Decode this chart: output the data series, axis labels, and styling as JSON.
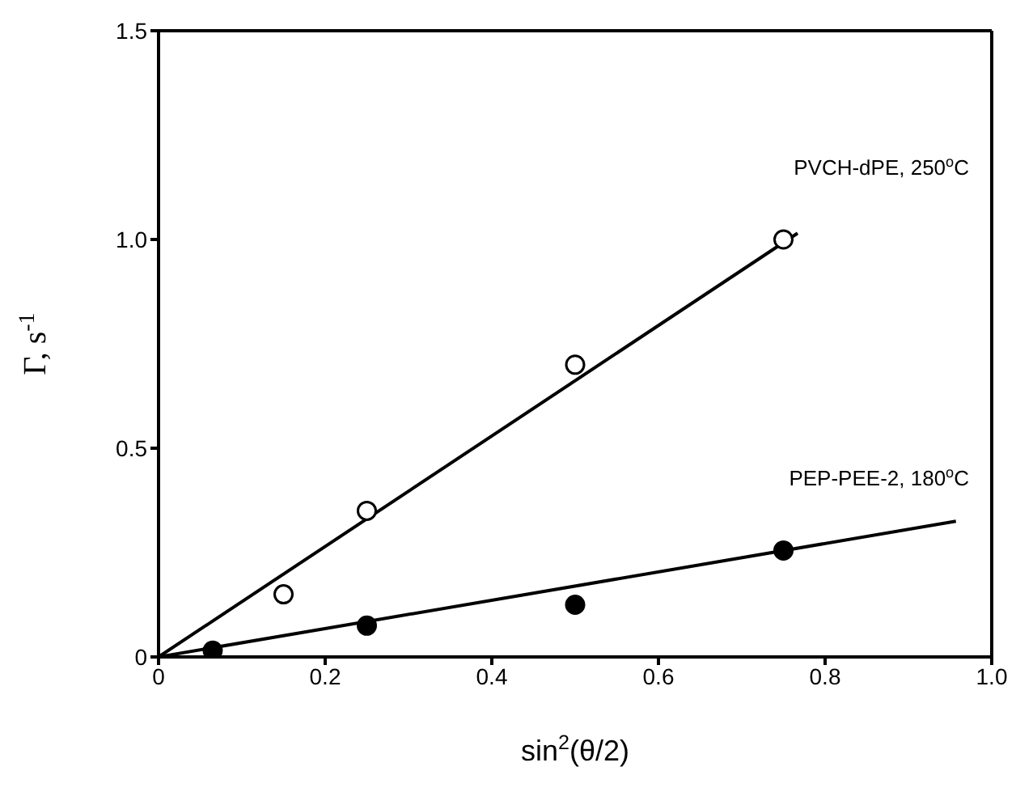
{
  "chart_data": {
    "type": "scatter",
    "xlabel": "sin$^{2}$(θ/2)",
    "ylabel": "Γ, s$^{-1}$",
    "xlim": [
      0,
      1.0
    ],
    "ylim": [
      0,
      1.5
    ],
    "xticks": [
      {
        "value": 0,
        "label": "0"
      },
      {
        "value": 0.2,
        "label": "0.2"
      },
      {
        "value": 0.4,
        "label": "0.4"
      },
      {
        "value": 0.6,
        "label": "0.6"
      },
      {
        "value": 0.8,
        "label": "0.8"
      },
      {
        "value": 1.0,
        "label": "1.0"
      }
    ],
    "yticks": [
      {
        "value": 0,
        "label": "0"
      },
      {
        "value": 0.5,
        "label": "0.5"
      },
      {
        "value": 1.0,
        "label": "1.0"
      },
      {
        "value": 1.5,
        "label": "1.5"
      }
    ],
    "grid": false,
    "legend": false,
    "marker": "circle",
    "series": [
      {
        "name": "PVCH-dPE, 250$^{o}$C",
        "color": "#ffffff",
        "x": [
          0.15,
          0.25,
          0.5,
          0.75
        ],
        "values": [
          0.15,
          0.35,
          0.7,
          1.0
        ]
      },
      {
        "name": "PEP-PEE-2, 180$^{o}$C",
        "color": "#000000",
        "x": [
          0.065,
          0.25,
          0.5,
          0.75
        ],
        "values": [
          0.015,
          0.075,
          0.125,
          0.255
        ]
      },
      {
        "type": "line",
        "color": "#000000",
        "marker": "none",
        "x": [
          0,
          0.767
        ],
        "values": [
          0,
          1.015
        ]
      },
      {
        "type": "line",
        "color": "#000000",
        "marker": "none",
        "x": [
          0,
          0.957
        ],
        "values": [
          0,
          0.325
        ]
      }
    ]
  }
}
